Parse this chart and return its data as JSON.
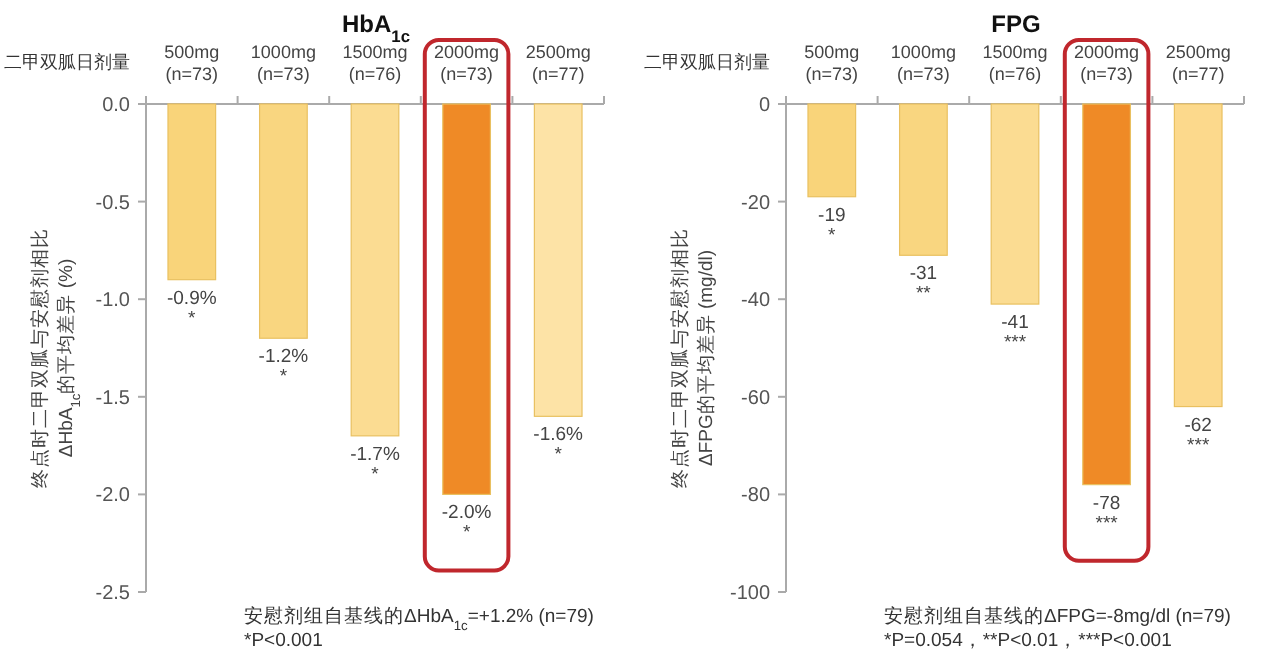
{
  "chart_data": [
    {
      "type": "bar",
      "title": "HbA$_{1c}$",
      "xlabel": "二甲双胍日剂量",
      "ylabel": "终点时二甲双胍与安慰剂相比\nΔHbA$_{1c}$的平均差异 (%)",
      "categories": [
        "500mg\n(n=73)",
        "1000mg\n(n=73)",
        "1500mg\n(n=76)",
        "2000mg\n(n=73)",
        "2500mg\n(n=77)"
      ],
      "values": [
        -0.9,
        -1.2,
        -1.7,
        -2.0,
        -1.6
      ],
      "colors": [
        "#f9d47a",
        "#f9d680",
        "#fbdc92",
        "#ef8a26",
        "#fde3a6"
      ],
      "value_labels": [
        "-0.9%\n*",
        "-1.2%\n*",
        "-1.7%\n*",
        "-2.0%\n*",
        "-1.6%\n*"
      ],
      "ylim": [
        -2.5,
        0
      ],
      "yticks": [
        {
          "value": -2.5,
          "label": "-2.5"
        },
        {
          "value": -2.0,
          "label": "-2.0"
        },
        {
          "value": -1.5,
          "label": "-1.5"
        },
        {
          "value": -1.0,
          "label": "-1.0"
        },
        {
          "value": -0.5,
          "label": "-0.5"
        },
        {
          "value": 0,
          "label": "0.0"
        }
      ],
      "grid": false,
      "annotations": [
        "安慰剂组自基线的ΔHbA$_{1c}$=+1.2% (n=79)",
        "*P<0.001"
      ]
    },
    {
      "type": "bar",
      "title": "FPG",
      "xlabel": "二甲双胍日剂量",
      "ylabel": "终点时二甲双胍与安慰剂相比\nΔFPG的平均差异 (mg/dl)",
      "categories": [
        "500mg\n(n=73)",
        "1000mg\n(n=73)",
        "1500mg\n(n=76)",
        "2000mg\n(n=73)",
        "2500mg\n(n=77)"
      ],
      "values": [
        -19,
        -31,
        -41,
        -78,
        -62
      ],
      "colors": [
        "#f9d47a",
        "#f9d680",
        "#fbdc92",
        "#ef8a26",
        "#fcd98c"
      ],
      "value_labels": [
        "-19\n*",
        "-31\n**",
        "-41\n***",
        "-78\n***",
        "-62\n***"
      ],
      "ylim": [
        -100,
        0
      ],
      "yticks": [
        -100,
        -80,
        -60,
        -40,
        -20,
        0
      ],
      "grid": false,
      "annotations": [
        "安慰剂组自基线的ΔFPG=-8mg/dl (n=79)",
        "*P=0.054，**P<0.01，***P<0.001"
      ]
    }
  ]
}
